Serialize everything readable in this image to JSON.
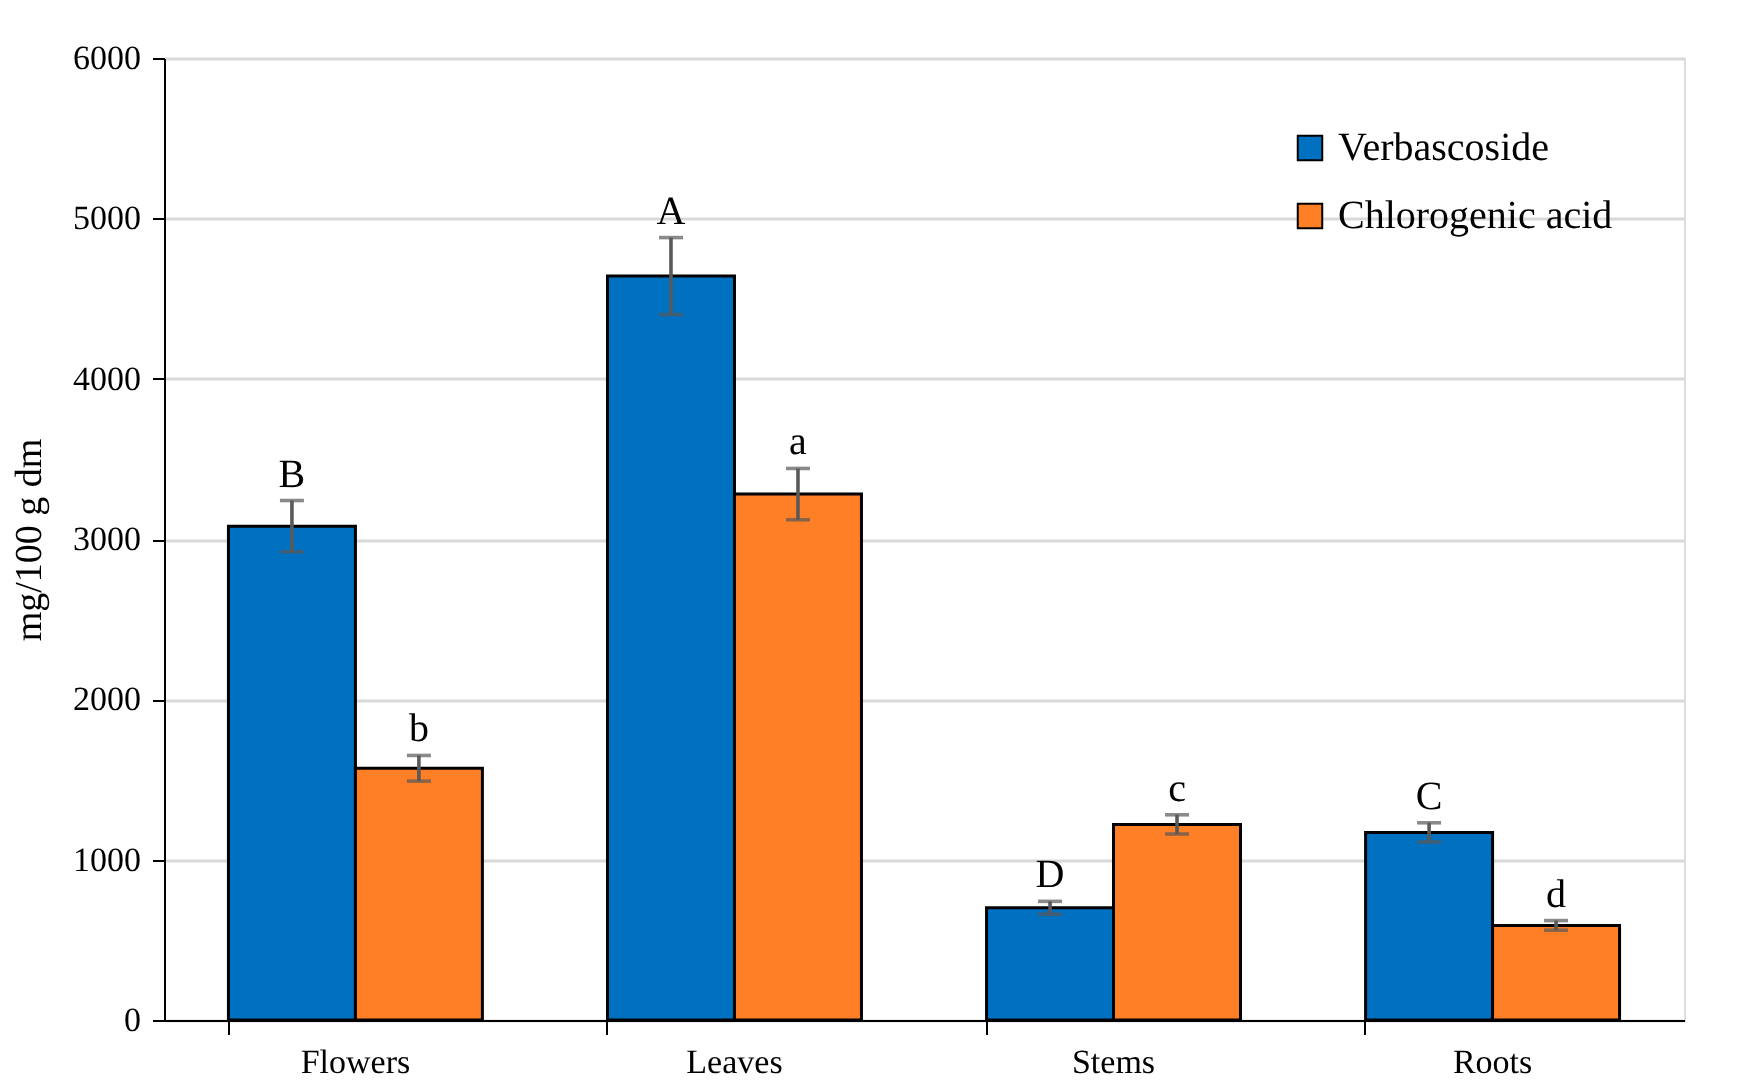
{
  "chart_data": {
    "type": "bar",
    "ylabel": "mg/100 g dm",
    "categories": [
      "Flowers",
      "Leaves",
      "Stems",
      "Roots"
    ],
    "series": [
      {
        "name": "Verbascoside",
        "color": "#0070c0",
        "values": [
          3080,
          4640,
          700,
          1170
        ],
        "errors": [
          160,
          240,
          40,
          60
        ],
        "value_labels": [
          "B",
          "A",
          "D",
          "C"
        ]
      },
      {
        "name": "Chlorogenic acid",
        "color": "#ff7f27",
        "values": [
          1570,
          3280,
          1220,
          590
        ],
        "errors": [
          80,
          160,
          60,
          30
        ],
        "value_labels": [
          "b",
          "a",
          "c",
          "d"
        ]
      }
    ],
    "ylim": [
      0,
      6000
    ],
    "yticks": [
      0,
      1000,
      2000,
      3000,
      4000,
      5000,
      6000
    ],
    "grid": "y",
    "legend": "top right"
  }
}
